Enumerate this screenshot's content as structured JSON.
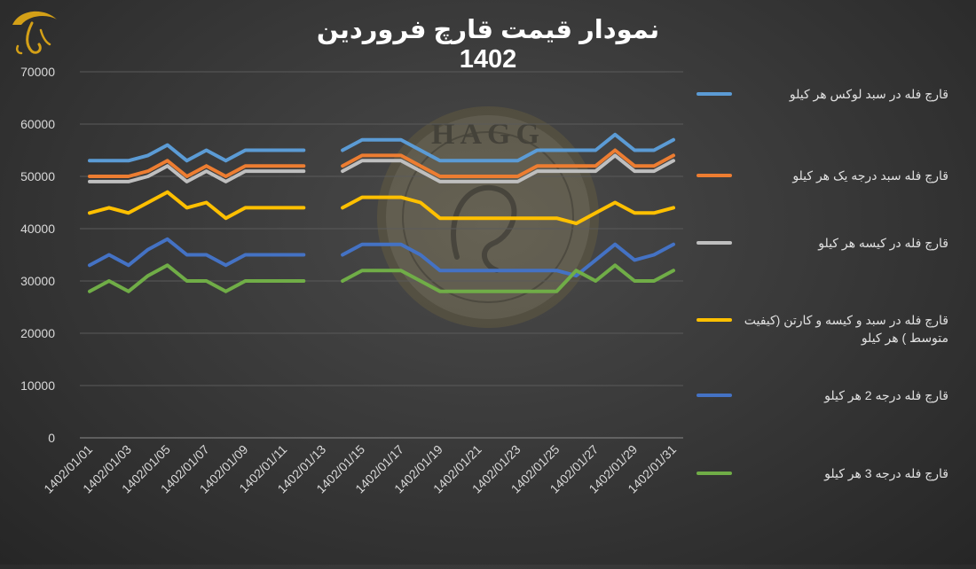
{
  "chart_data": {
    "type": "line",
    "title": "نمودار قیمت قارچ فروردین 1402",
    "xlabel": "",
    "ylabel": "",
    "ylim": [
      0,
      70000
    ],
    "yticks": [
      0,
      10000,
      20000,
      30000,
      40000,
      50000,
      60000,
      70000
    ],
    "grid": true,
    "legend_position": "right",
    "x": [
      "1402/01/01",
      "1402/01/02",
      "1402/01/03",
      "1402/01/04",
      "1402/01/05",
      "1402/01/06",
      "1402/01/07",
      "1402/01/08",
      "1402/01/09",
      "1402/01/10",
      "1402/01/11",
      "1402/01/12",
      "1402/01/13",
      "1402/01/14",
      "1402/01/15",
      "1402/01/16",
      "1402/01/17",
      "1402/01/18",
      "1402/01/19",
      "1402/01/20",
      "1402/01/21",
      "1402/01/22",
      "1402/01/23",
      "1402/01/24",
      "1402/01/25",
      "1402/01/26",
      "1402/01/27",
      "1402/01/28",
      "1402/01/29",
      "1402/01/30",
      "1402/01/31"
    ],
    "xtick_labels": [
      "1402/01/01",
      "1402/01/03",
      "1402/01/05",
      "1402/01/07",
      "1402/01/09",
      "1402/01/11",
      "1402/01/13",
      "1402/01/15",
      "1402/01/17",
      "1402/01/19",
      "1402/01/21",
      "1402/01/23",
      "1402/01/25",
      "1402/01/27",
      "1402/01/29",
      "1402/01/31"
    ],
    "series": [
      {
        "name": "قارچ فله در سبد لوکس هر کیلو",
        "color": "#5b9bd5",
        "values": [
          53000,
          53000,
          53000,
          54000,
          56000,
          53000,
          55000,
          53000,
          55000,
          55000,
          55000,
          55000,
          null,
          55000,
          57000,
          57000,
          57000,
          55000,
          53000,
          53000,
          53000,
          53000,
          53000,
          55000,
          55000,
          55000,
          55000,
          58000,
          55000,
          55000,
          57000
        ]
      },
      {
        "name": "قارچ فله سبد درجه یک هر کیلو",
        "color": "#ed7d31",
        "values": [
          50000,
          50000,
          50000,
          51000,
          53000,
          50000,
          52000,
          50000,
          52000,
          52000,
          52000,
          52000,
          null,
          52000,
          54000,
          54000,
          54000,
          52000,
          50000,
          50000,
          50000,
          50000,
          50000,
          52000,
          52000,
          52000,
          52000,
          55000,
          52000,
          52000,
          54000
        ]
      },
      {
        "name": "قارچ فله در کیسه هر کیلو",
        "color": "#bfbfbf",
        "values": [
          49000,
          49000,
          49000,
          50000,
          52000,
          49000,
          51000,
          49000,
          51000,
          51000,
          51000,
          51000,
          null,
          51000,
          53000,
          53000,
          53000,
          51000,
          49000,
          49000,
          49000,
          49000,
          49000,
          51000,
          51000,
          51000,
          51000,
          54000,
          51000,
          51000,
          53000
        ]
      },
      {
        "name": "قارچ فله در سبد و کیسه و کارتن (کیفیت متوسط ) هر کیلو",
        "color": "#ffc000",
        "values": [
          43000,
          44000,
          43000,
          45000,
          47000,
          44000,
          45000,
          42000,
          44000,
          44000,
          44000,
          44000,
          null,
          44000,
          46000,
          46000,
          46000,
          45000,
          42000,
          42000,
          42000,
          42000,
          42000,
          42000,
          42000,
          41000,
          43000,
          45000,
          43000,
          43000,
          44000
        ]
      },
      {
        "name": "قارچ فله درجه 2 هر کیلو",
        "color": "#4472c4",
        "values": [
          33000,
          35000,
          33000,
          36000,
          38000,
          35000,
          35000,
          33000,
          35000,
          35000,
          35000,
          35000,
          null,
          35000,
          37000,
          37000,
          37000,
          35000,
          32000,
          32000,
          32000,
          32000,
          32000,
          32000,
          32000,
          31000,
          34000,
          37000,
          34000,
          35000,
          37000
        ]
      },
      {
        "name": "قارچ فله درجه 3 هر کیلو",
        "color": "#70ad47",
        "values": [
          28000,
          30000,
          28000,
          31000,
          33000,
          30000,
          30000,
          28000,
          30000,
          30000,
          30000,
          30000,
          null,
          30000,
          32000,
          32000,
          32000,
          30000,
          28000,
          28000,
          28000,
          28000,
          28000,
          28000,
          28000,
          32000,
          30000,
          33000,
          30000,
          30000,
          32000
        ]
      }
    ]
  },
  "logo": {
    "icon": "mushroom-logo-icon",
    "color": "#d4a017"
  },
  "watermark": {
    "text": "HAGG",
    "icon": "hagg-seal-icon"
  }
}
